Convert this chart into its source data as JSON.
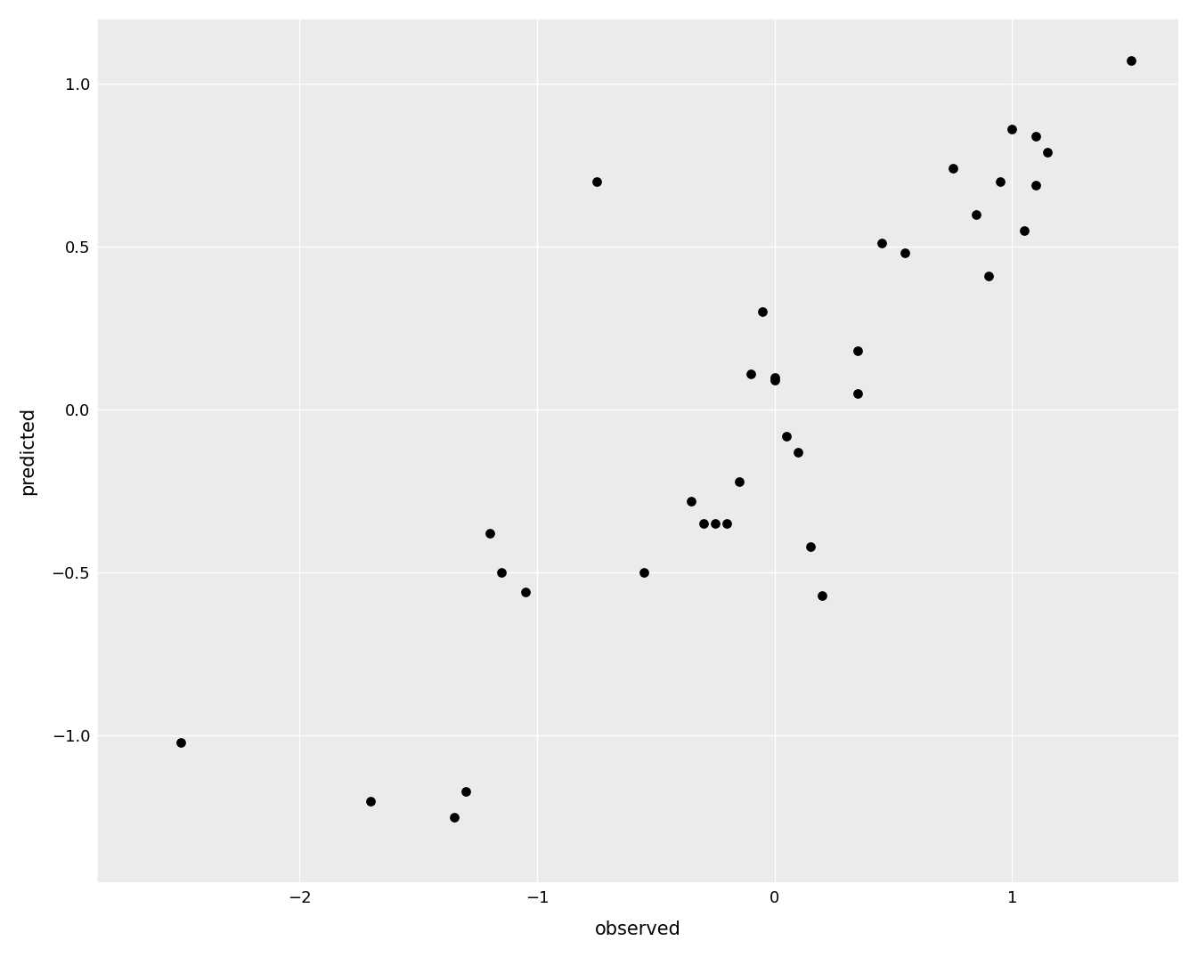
{
  "x": [
    -2.5,
    -1.7,
    -1.35,
    -1.3,
    -1.2,
    -1.15,
    -1.05,
    -0.75,
    -0.55,
    -0.35,
    -0.3,
    -0.25,
    -0.2,
    -0.15,
    -0.1,
    -0.05,
    0.0,
    0.0,
    0.05,
    0.1,
    0.15,
    0.2,
    0.35,
    0.35,
    0.45,
    0.55,
    0.75,
    0.85,
    0.9,
    0.95,
    1.0,
    1.05,
    1.1,
    1.1,
    1.15,
    1.5
  ],
  "y": [
    -1.02,
    -1.2,
    -1.25,
    -1.17,
    -0.38,
    -0.5,
    -0.56,
    0.7,
    -0.5,
    -0.28,
    -0.35,
    -0.35,
    -0.35,
    -0.22,
    0.11,
    0.3,
    0.1,
    0.09,
    -0.08,
    -0.13,
    -0.42,
    -0.57,
    0.18,
    0.05,
    0.51,
    0.48,
    0.74,
    0.6,
    0.41,
    0.7,
    0.86,
    0.55,
    0.84,
    0.69,
    0.79,
    1.07
  ],
  "xlabel": "observed",
  "ylabel": "predicted",
  "xlim": [
    -2.85,
    1.7
  ],
  "ylim": [
    -1.45,
    1.2
  ],
  "xticks": [
    -2,
    -1,
    0,
    1
  ],
  "yticks": [
    -1.0,
    -0.5,
    0.0,
    0.5,
    1.0
  ],
  "point_color": "#000000",
  "point_size": 45,
  "panel_background": "#ebebeb",
  "figure_background": "#ffffff",
  "grid_color": "#ffffff",
  "grid_linewidth": 1.0,
  "spine_color": "#ffffff",
  "font_size_label": 15,
  "font_size_tick": 13
}
